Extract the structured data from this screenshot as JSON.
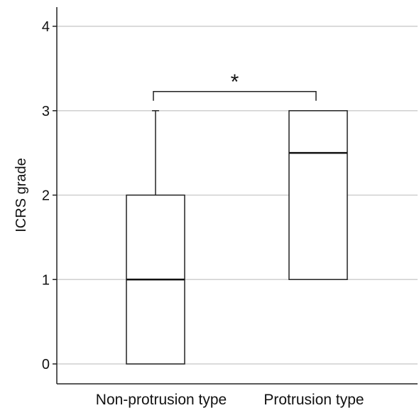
{
  "chart_data": {
    "type": "box",
    "ylabel": "ICRS grade",
    "xlabel": "",
    "ylim": [
      0,
      4
    ],
    "yticks": [
      "0",
      "1",
      "2",
      "3",
      "4"
    ],
    "grid": true,
    "categories": [
      "Non-protrusion type",
      "Protrusion type"
    ],
    "boxes": [
      {
        "category": "Non-protrusion type",
        "min": 0,
        "q1": 0,
        "median": 1,
        "q3": 2,
        "max": 3
      },
      {
        "category": "Protrusion type",
        "min": 1,
        "q1": 1,
        "median": 2.5,
        "q3": 3,
        "max": 3
      }
    ],
    "annotation": {
      "text": "*",
      "between": [
        "Non-protrusion type",
        "Protrusion type"
      ]
    }
  }
}
